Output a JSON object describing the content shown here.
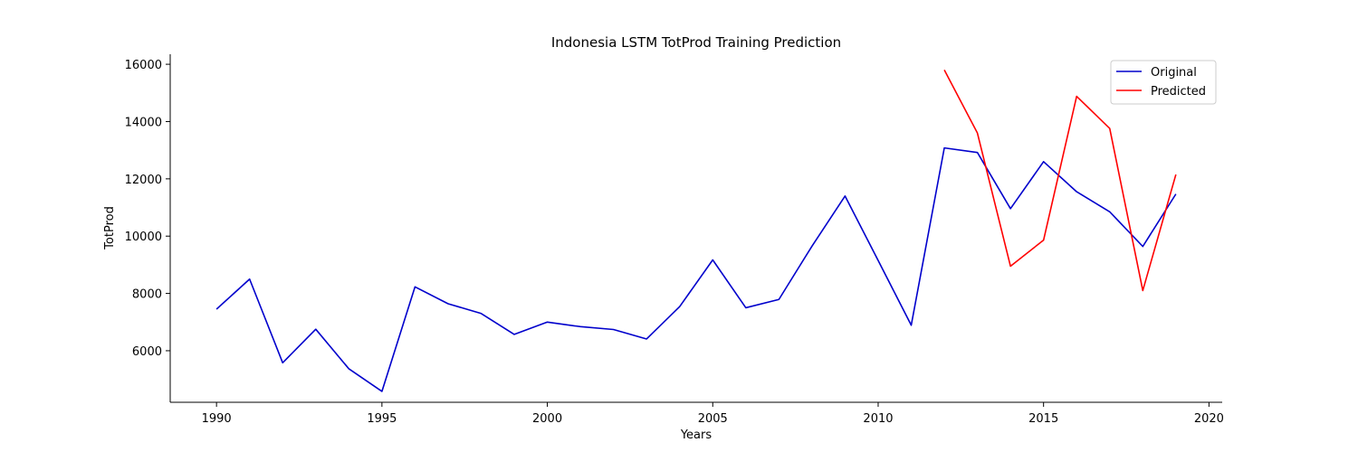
{
  "chart_data": {
    "type": "line",
    "title": "Indonesia LSTM TotProd Training Prediction",
    "xlabel": "Years",
    "ylabel": "TotProd",
    "xlim": [
      1988.6,
      2020.4
    ],
    "ylim": [
      4200,
      16350
    ],
    "xticks": [
      1990,
      1995,
      2000,
      2005,
      2010,
      2015,
      2020
    ],
    "yticks": [
      6000,
      8000,
      10000,
      12000,
      14000,
      16000
    ],
    "grid": false,
    "legend": "top-right",
    "series": [
      {
        "name": "Original",
        "color": "#0000cc",
        "x": [
          1990,
          1991,
          1992,
          1993,
          1994,
          1995,
          1996,
          1997,
          1998,
          1999,
          2000,
          2001,
          2002,
          2003,
          2004,
          2005,
          2006,
          2007,
          2008,
          2009,
          2010,
          2011,
          2012,
          2013,
          2014,
          2015,
          2016,
          2017,
          2018,
          2019
        ],
        "y": [
          7450,
          8500,
          5580,
          6750,
          5370,
          4580,
          8230,
          7640,
          7300,
          6570,
          7000,
          6840,
          6740,
          6410,
          7540,
          9170,
          7500,
          7790,
          9650,
          11400,
          9150,
          6890,
          13080,
          12920,
          10960,
          12600,
          11550,
          10850,
          9640,
          11470
        ]
      },
      {
        "name": "Predicted",
        "color": "#ff0000",
        "x": [
          2012,
          2013,
          2014,
          2015,
          2016,
          2017,
          2018,
          2019
        ],
        "y": [
          15800,
          13600,
          8950,
          9860,
          14880,
          13760,
          8100,
          12150
        ]
      }
    ]
  }
}
